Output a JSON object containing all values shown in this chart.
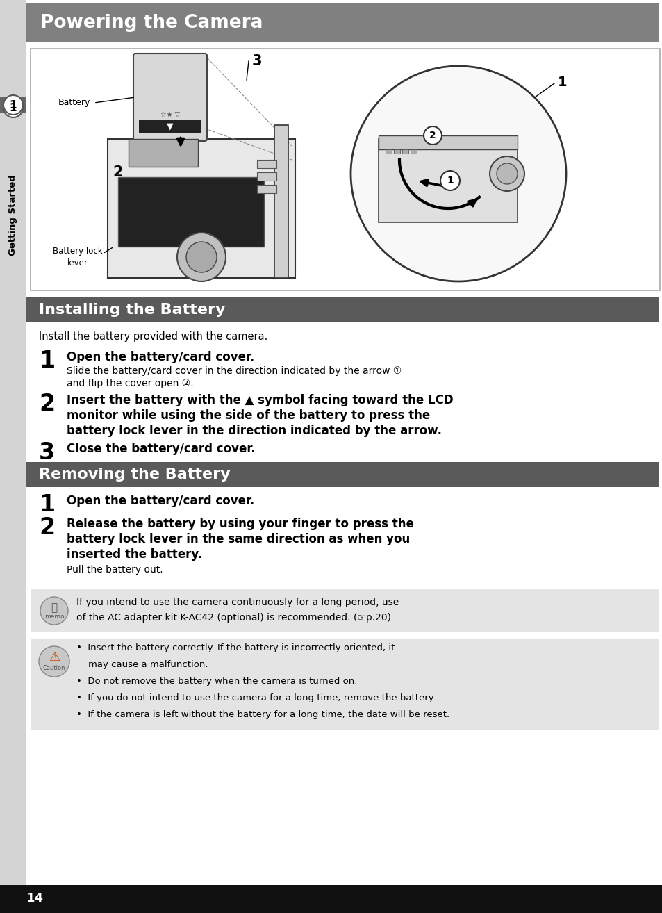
{
  "page_bg": "#ffffff",
  "sidebar_bg": "#d4d4d4",
  "header_bg": "#808080",
  "header_text": "Powering the Camera",
  "header_text_color": "#ffffff",
  "header_fontsize": 19,
  "section1_bg": "#5a5a5a",
  "section1_text": "Installing the Battery",
  "section2_bg": "#5a5a5a",
  "section2_text": "Removing the Battery",
  "section_text_color": "#ffffff",
  "section_fontsize": 16,
  "body_text_color": "#000000",
  "memo_bg": "#e4e4e4",
  "caution_bg": "#e4e4e4",
  "footer_bg": "#111111",
  "footer_text": "14",
  "footer_text_color": "#ffffff",
  "tab_text": "Getting Started"
}
